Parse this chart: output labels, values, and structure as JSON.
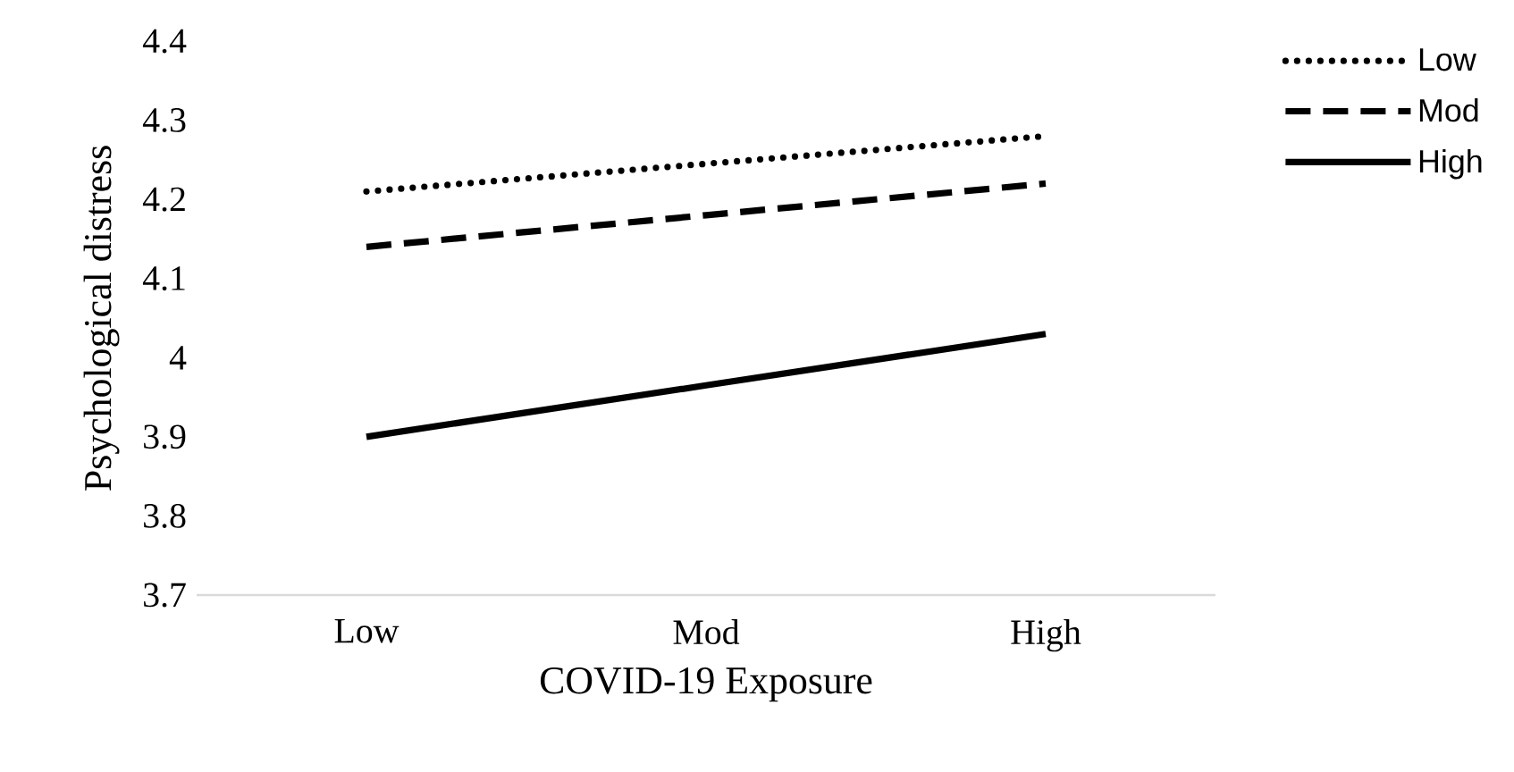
{
  "chart_data": {
    "type": "line",
    "xlabel": "COVID-19 Exposure",
    "ylabel": "Psychological distress",
    "categories": [
      "Low",
      "Mod",
      "High"
    ],
    "series": [
      {
        "name": "Low",
        "color": "#000000",
        "line_style": "dotted",
        "values": [
          4.21,
          4.245,
          4.28
        ]
      },
      {
        "name": "Mod",
        "color": "#000000",
        "line_style": "dashed",
        "values": [
          4.14,
          4.18,
          4.22
        ]
      },
      {
        "name": "High",
        "color": "#000000",
        "line_style": "solid",
        "values": [
          3.9,
          3.965,
          4.03
        ]
      }
    ],
    "ylim": [
      3.7,
      4.4
    ],
    "yticks": [
      3.7,
      3.8,
      3.9,
      4,
      4.1,
      4.2,
      4.3,
      4.4
    ],
    "grid": false,
    "legend": "top right",
    "marker": "none"
  }
}
